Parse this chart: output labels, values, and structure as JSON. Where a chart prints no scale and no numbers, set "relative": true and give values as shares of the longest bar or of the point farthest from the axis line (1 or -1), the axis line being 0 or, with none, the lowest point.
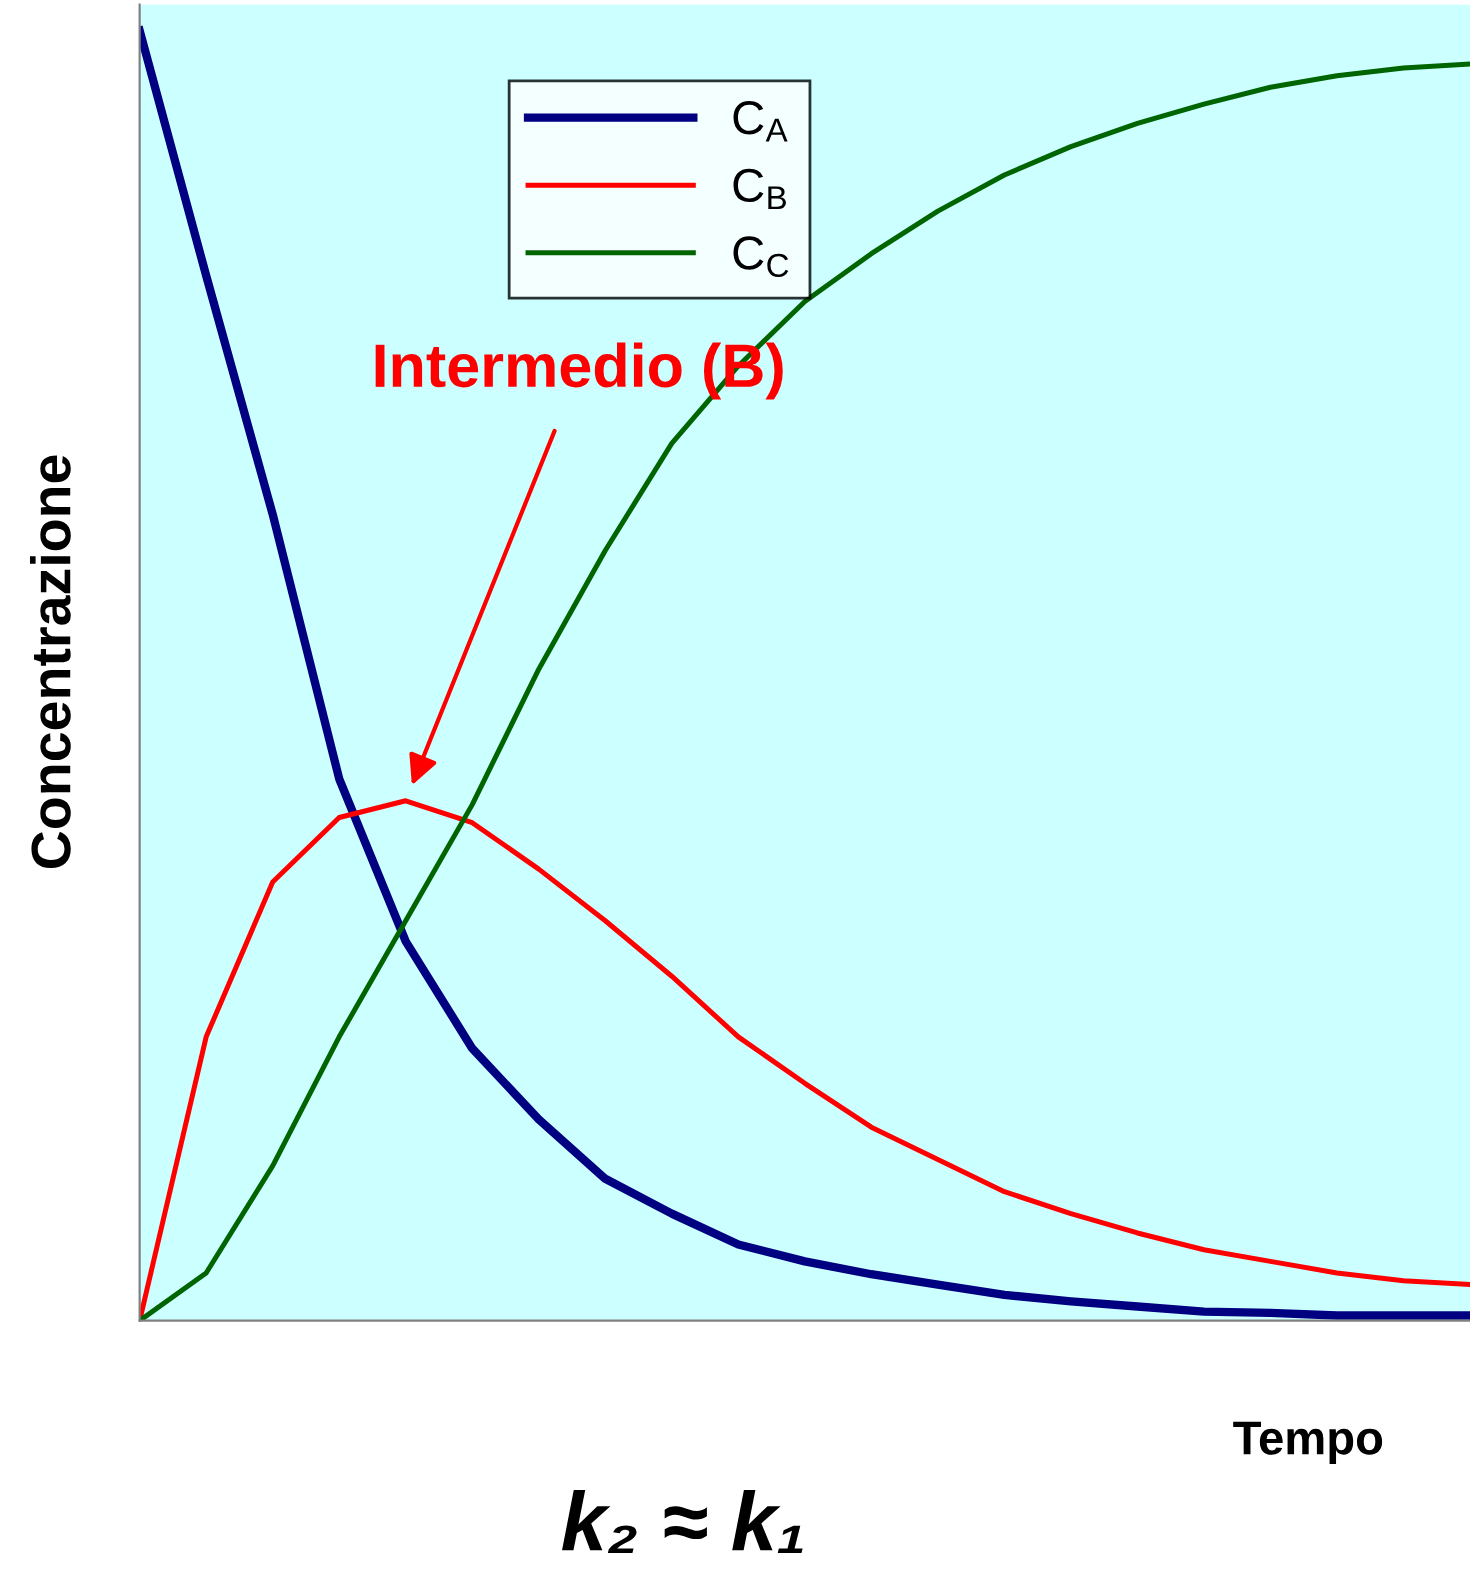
{
  "chart_data": {
    "type": "line",
    "relative": true,
    "title": "k₂ ≈ k₁",
    "xlabel": "Tempo",
    "ylabel": "Concentrazione",
    "categories": [
      null,
      null,
      null,
      null,
      null,
      null,
      null,
      null,
      null,
      null,
      null,
      null,
      null,
      null,
      null,
      null,
      null,
      null,
      null,
      null,
      null
    ],
    "series": [
      {
        "name": "C$_{A}$",
        "color": "#000080",
        "values": [
          1.0,
          0.81,
          0.625,
          0.42,
          0.294,
          0.211,
          0.156,
          0.11,
          0.083,
          0.059,
          0.046,
          0.036,
          0.028,
          0.02,
          0.015,
          0.011,
          0.007,
          0.006,
          0.004,
          0.004,
          0.004
        ]
      },
      {
        "name": "C$_{B}$",
        "color": "#ff0000",
        "values": [
          0,
          0.22,
          0.34,
          0.39,
          0.403,
          0.386,
          0.35,
          0.31,
          0.267,
          0.22,
          0.184,
          0.15,
          0.125,
          0.1,
          0.083,
          0.068,
          0.055,
          0.046,
          0.037,
          0.031,
          0.028
        ]
      },
      {
        "name": "C$_{C}$",
        "color": "#006400",
        "values": [
          0,
          0.037,
          0.12,
          0.22,
          0.31,
          0.4,
          0.505,
          0.597,
          0.68,
          0.74,
          0.79,
          0.827,
          0.86,
          0.888,
          0.91,
          0.928,
          0.943,
          0.956,
          0.965,
          0.971,
          0.974
        ]
      }
    ],
    "annotations": [
      "Intermedio (B)"
    ],
    "legend": "top left",
    "grid": false,
    "marker": "none",
    "line_style": "solid"
  }
}
